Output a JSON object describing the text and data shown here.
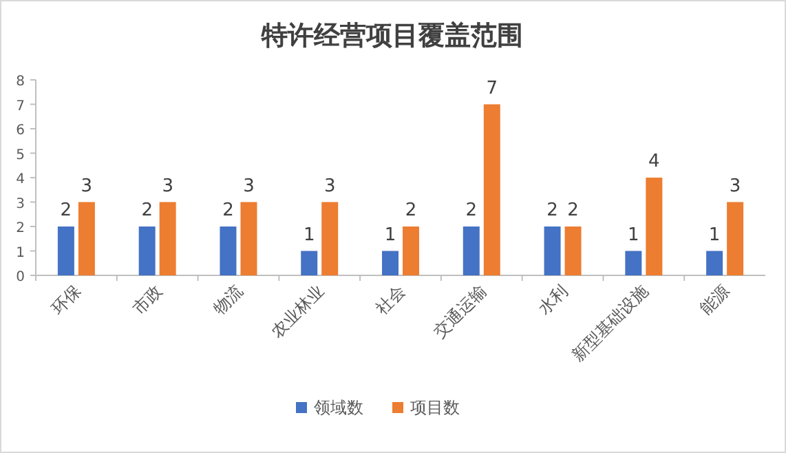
{
  "chart_data": {
    "type": "bar",
    "title": "特许经营项目覆盖范围",
    "categories": [
      "环保",
      "市政",
      "物流",
      "农业林业",
      "社会",
      "交通运输",
      "水利",
      "新型基础设施",
      "能源"
    ],
    "series": [
      {
        "name": "领域数",
        "color": "#4472c4",
        "values": [
          2,
          2,
          2,
          1,
          1,
          2,
          2,
          1,
          1
        ]
      },
      {
        "name": "项目数",
        "color": "#ed7d31",
        "values": [
          3,
          3,
          3,
          3,
          2,
          7,
          2,
          4,
          3
        ]
      }
    ],
    "ylim": [
      0,
      8
    ],
    "yticks": [
      0,
      1,
      2,
      3,
      4,
      5,
      6,
      7,
      8
    ],
    "data_labels": true,
    "legend": "bottom"
  }
}
